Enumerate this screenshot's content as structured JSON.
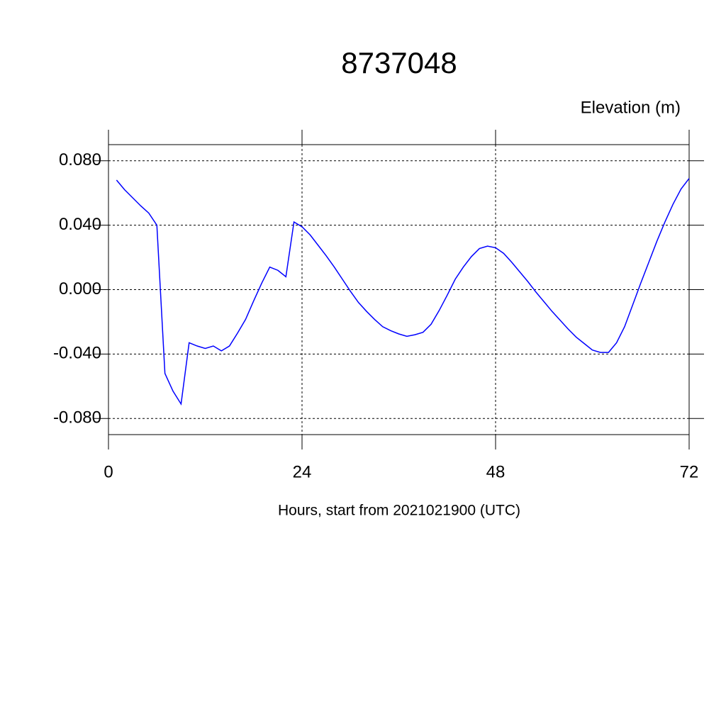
{
  "chart_data": {
    "type": "line",
    "title": "8737048",
    "subtitle": "Elevation (m)",
    "xlabel": "Hours, start from 2021021900 (UTC)",
    "x": [
      1,
      2,
      3,
      4,
      5,
      6,
      7,
      8,
      9,
      10,
      11,
      12,
      13,
      14,
      15,
      16,
      17,
      18,
      19,
      20,
      21,
      22,
      23,
      24,
      25,
      26,
      27,
      28,
      29,
      30,
      31,
      32,
      33,
      34,
      35,
      36,
      37,
      38,
      39,
      40,
      41,
      42,
      43,
      44,
      45,
      46,
      47,
      48,
      49,
      50,
      51,
      52,
      53,
      54,
      55,
      56,
      57,
      58,
      59,
      60,
      61,
      62,
      63,
      64,
      65,
      66,
      67,
      68,
      69,
      70,
      71,
      72
    ],
    "series": [
      {
        "color": "#0000ff",
        "values": [
          0.068,
          0.062,
          0.057,
          0.052,
          0.0475,
          0.04,
          -0.052,
          -0.063,
          -0.071,
          -0.033,
          -0.035,
          -0.0365,
          -0.035,
          -0.038,
          -0.035,
          -0.027,
          -0.0185,
          -0.007,
          0.004,
          0.014,
          0.012,
          0.008,
          0.042,
          0.039,
          0.034,
          0.0275,
          0.021,
          0.014,
          0.0065,
          -0.001,
          -0.008,
          -0.0135,
          -0.0185,
          -0.023,
          -0.0255,
          -0.0275,
          -0.029,
          -0.028,
          -0.0265,
          -0.0215,
          -0.013,
          -0.0035,
          0.0065,
          0.014,
          0.0205,
          0.0255,
          0.027,
          0.026,
          0.0225,
          0.017,
          0.011,
          0.005,
          -0.0015,
          -0.0075,
          -0.0135,
          -0.019,
          -0.0245,
          -0.0295,
          -0.0335,
          -0.0375,
          -0.039,
          -0.039,
          -0.033,
          -0.023,
          -0.0095,
          0.004,
          0.017,
          0.03,
          0.042,
          0.053,
          0.0625,
          0.069
        ]
      }
    ],
    "xlim": [
      0,
      72
    ],
    "xticks": [
      0,
      24,
      48,
      72
    ],
    "ylim": [
      -0.09,
      0.09
    ],
    "yticks": [
      {
        "value": 0.08,
        "label": "0.080"
      },
      {
        "value": 0.04,
        "label": "0.040"
      },
      {
        "value": 0,
        "label": "0.000"
      },
      {
        "value": -0.04,
        "label": "-0.040"
      },
      {
        "value": -0.08,
        "label": "-0.080"
      }
    ],
    "grid": true
  }
}
